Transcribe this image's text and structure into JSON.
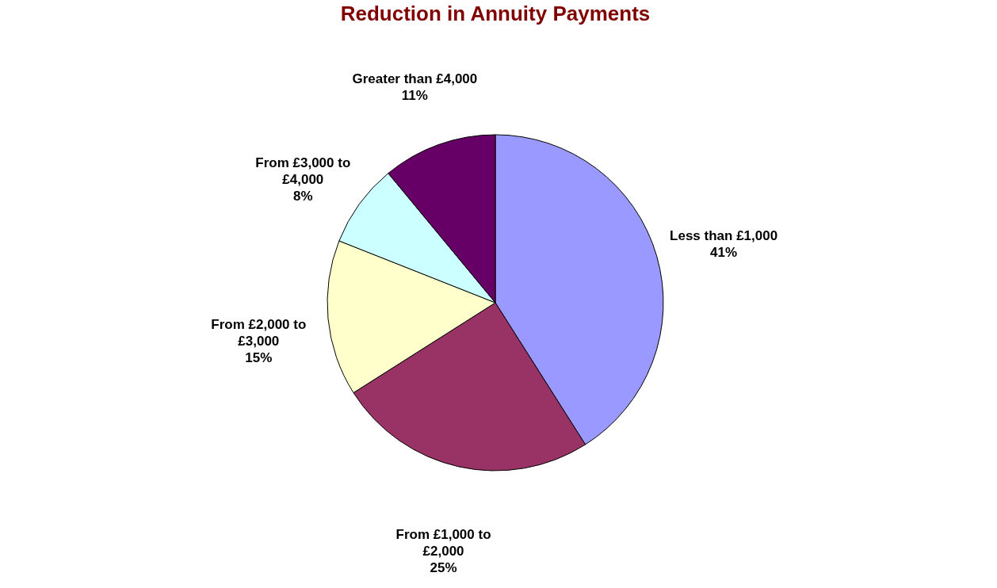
{
  "chart_data": {
    "type": "pie",
    "title": "Reduction in Annuity Payments",
    "categories": [
      "Less than £1,000",
      "From £1,000 to £2,000",
      "From £2,000 to £3,000",
      "From £3,000 to £4,000",
      "Greater than £4,000"
    ],
    "values": [
      41,
      25,
      15,
      8,
      11
    ],
    "colors": [
      "#9999ff",
      "#993366",
      "#ffffcc",
      "#ccffff",
      "#660066"
    ],
    "value_labels": [
      "41%",
      "25%",
      "15%",
      "8%",
      "11%"
    ],
    "legend": false
  }
}
